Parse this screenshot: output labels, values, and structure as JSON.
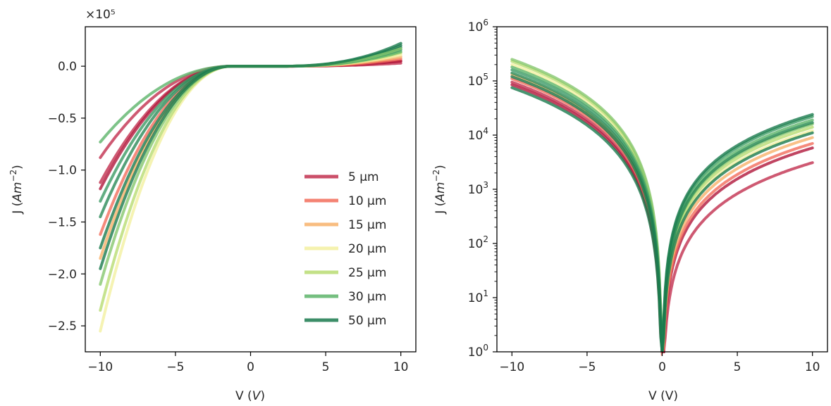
{
  "chart_data": [
    {
      "type": "line",
      "xlabel": "V (V)",
      "ylabel": "J (Am⁻²)",
      "ylabel_parts": {
        "base": "J (",
        "unit": "Am",
        "exp": "−2",
        "close": ")"
      },
      "xlabel_parts": {
        "base": "V (",
        "unit": "V",
        "close": ")"
      },
      "y_multiplier": "×10⁵",
      "xlim": [
        -11,
        11
      ],
      "ylim": [
        -2.75,
        0.38
      ],
      "y_scale": "linear",
      "xticks": [
        -10,
        -5,
        0,
        5,
        10
      ],
      "xtick_labels": [
        "−10",
        "−5",
        "0",
        "5",
        "10"
      ],
      "yticks": [
        -2.5,
        -2.0,
        -1.5,
        -1.0,
        -0.5,
        0.0
      ],
      "ytick_labels": [
        "−2.5",
        "−2.0",
        "−1.5",
        "−1.0",
        "−0.5",
        "0.0"
      ],
      "grid": false,
      "legend": {
        "placement": "lower-right",
        "entries": [
          {
            "label": "5 μm",
            "color": "#c2304f"
          },
          {
            "label": "10 μm",
            "color": "#f26d5b"
          },
          {
            "label": "15 μm",
            "color": "#f7b26a"
          },
          {
            "label": "20 μm",
            "color": "#f3f0a0"
          },
          {
            "label": "25 μm",
            "color": "#b8dc72"
          },
          {
            "label": "30 μm",
            "color": "#5db46a"
          },
          {
            "label": "50 μm",
            "color": "#1a7a4e"
          }
        ]
      },
      "series": [
        {
          "color": "#c2304f",
          "v_neg10": -0.88,
          "v_pos10": 0.03
        },
        {
          "color": "#c2304f",
          "v_neg10": -1.12,
          "v_pos10": 0.05
        },
        {
          "color": "#b0173b",
          "v_neg10": -1.18,
          "v_pos10": 0.05
        },
        {
          "color": "#f26d5b",
          "v_neg10": -1.62,
          "v_pos10": 0.07
        },
        {
          "color": "#f7b26a",
          "v_neg10": -1.85,
          "v_pos10": 0.09
        },
        {
          "color": "#f3f0a0",
          "v_neg10": -2.55,
          "v_pos10": 0.11
        },
        {
          "color": "#b8dc72",
          "v_neg10": -2.35,
          "v_pos10": 0.13
        },
        {
          "color": "#5db46a",
          "v_neg10": -0.73,
          "v_pos10": 0.14
        },
        {
          "color": "#3c9a64",
          "v_neg10": -1.3,
          "v_pos10": 0.16
        },
        {
          "color": "#2a8a57",
          "v_neg10": -1.45,
          "v_pos10": 0.18
        },
        {
          "color": "#1a7a4e",
          "v_neg10": -1.75,
          "v_pos10": 0.2
        },
        {
          "color": "#86c76e",
          "v_neg10": -2.1,
          "v_pos10": 0.17
        },
        {
          "color": "#1a7a4e",
          "v_neg10": -1.95,
          "v_pos10": 0.22
        }
      ]
    },
    {
      "type": "line",
      "xlabel": "V (V)",
      "ylabel": "J (Am⁻²)",
      "ylabel_parts": {
        "base": "J (",
        "unit": "Am",
        "exp": "−2",
        "close": ")"
      },
      "xlabel_parts": {
        "base": "V (V)"
      },
      "xlim": [
        -11,
        11
      ],
      "ylim": [
        1,
        1000000
      ],
      "y_scale": "log",
      "xticks": [
        -10,
        -5,
        0,
        5,
        10
      ],
      "xtick_labels": [
        "−10",
        "−5",
        "0",
        "5",
        "10"
      ],
      "yticks": [
        1,
        10,
        100,
        1000,
        10000,
        100000,
        1000000
      ],
      "ytick_labels": [
        {
          "base": "10",
          "exp": "0"
        },
        {
          "base": "10",
          "exp": "1"
        },
        {
          "base": "10",
          "exp": "2"
        },
        {
          "base": "10",
          "exp": "3"
        },
        {
          "base": "10",
          "exp": "4"
        },
        {
          "base": "10",
          "exp": "5"
        },
        {
          "base": "10",
          "exp": "6"
        }
      ],
      "grid": false,
      "series": [
        {
          "color": "#c2304f",
          "j_neg10": 95000,
          "j_pos10": 3100
        },
        {
          "color": "#b0173b",
          "j_neg10": 85000,
          "j_pos10": 5800
        },
        {
          "color": "#f26d5b",
          "j_neg10": 110000,
          "j_pos10": 7000
        },
        {
          "color": "#f7b26a",
          "j_neg10": 130000,
          "j_pos10": 9000
        },
        {
          "color": "#f3f0a0",
          "j_neg10": 200000,
          "j_pos10": 12000
        },
        {
          "color": "#b8dc72",
          "j_neg10": 230000,
          "j_pos10": 14000
        },
        {
          "color": "#86c76e",
          "j_neg10": 250000,
          "j_pos10": 16000
        },
        {
          "color": "#5db46a",
          "j_neg10": 180000,
          "j_pos10": 19000
        },
        {
          "color": "#3c9a64",
          "j_neg10": 160000,
          "j_pos10": 22000
        },
        {
          "color": "#2a8a57",
          "j_neg10": 140000,
          "j_pos10": 17000
        },
        {
          "color": "#1a7a4e",
          "j_neg10": 75000,
          "j_pos10": 11000
        },
        {
          "color": "#1a7a4e",
          "j_neg10": 120000,
          "j_pos10": 24000
        }
      ]
    }
  ]
}
